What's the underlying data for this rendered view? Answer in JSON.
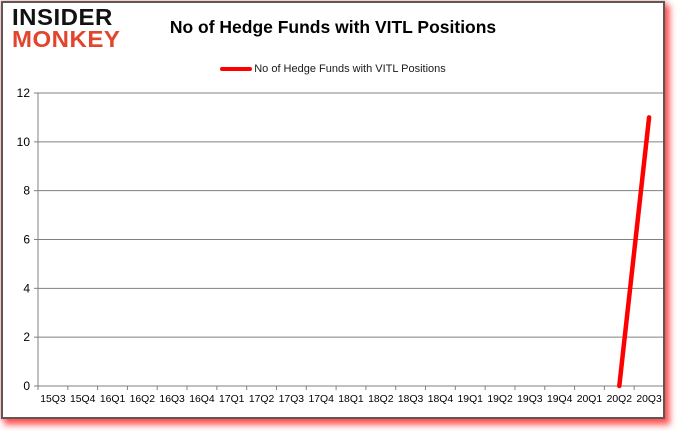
{
  "brand": {
    "line1": "INSIDER",
    "line2": "MONKEY"
  },
  "title": "No of Hedge Funds with VITL Positions",
  "legend": {
    "label": "No of Hedge Funds with VITL Positions",
    "color": "#fe0000"
  },
  "colors": {
    "series_red": "#fe0000",
    "gridline": "#808080",
    "axis": "#808080",
    "logo_black": "#121212",
    "logo_red": "#e2442d",
    "frame_border": "#595959",
    "glow": "rgba(255,10,10,0.65)",
    "background": "#ffffff"
  },
  "chart_data": {
    "type": "line",
    "title": "No of Hedge Funds with VITL Positions",
    "xlabel": "",
    "ylabel": "",
    "categories": [
      "15Q3",
      "15Q4",
      "16Q1",
      "16Q2",
      "16Q3",
      "16Q4",
      "17Q1",
      "17Q2",
      "17Q3",
      "17Q4",
      "18Q1",
      "18Q2",
      "18Q3",
      "18Q4",
      "19Q1",
      "19Q2",
      "19Q3",
      "19Q4",
      "20Q1",
      "20Q2",
      "20Q3"
    ],
    "series": [
      {
        "name": "No of Hedge Funds with VITL Positions",
        "color": "#fe0000",
        "values": [
          null,
          null,
          null,
          null,
          null,
          null,
          null,
          null,
          null,
          null,
          null,
          null,
          null,
          null,
          null,
          null,
          null,
          null,
          null,
          0,
          11
        ]
      }
    ],
    "ylim": [
      0,
      12
    ],
    "yticks": [
      0,
      2,
      4,
      6,
      8,
      10,
      12
    ],
    "grid": true,
    "legend_position": "top-center"
  }
}
